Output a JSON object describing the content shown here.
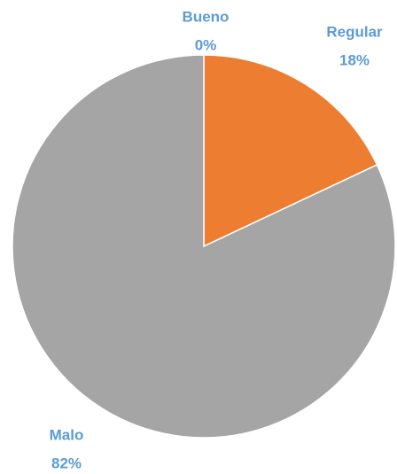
{
  "chart_data": {
    "type": "pie",
    "categories": [
      "Bueno",
      "Regular",
      "Malo"
    ],
    "values": [
      0,
      18,
      82
    ],
    "value_labels": [
      "0%",
      "18%",
      "82%"
    ],
    "colors": [
      "#4472c4",
      "#ed7d31",
      "#a5a5a5"
    ]
  }
}
